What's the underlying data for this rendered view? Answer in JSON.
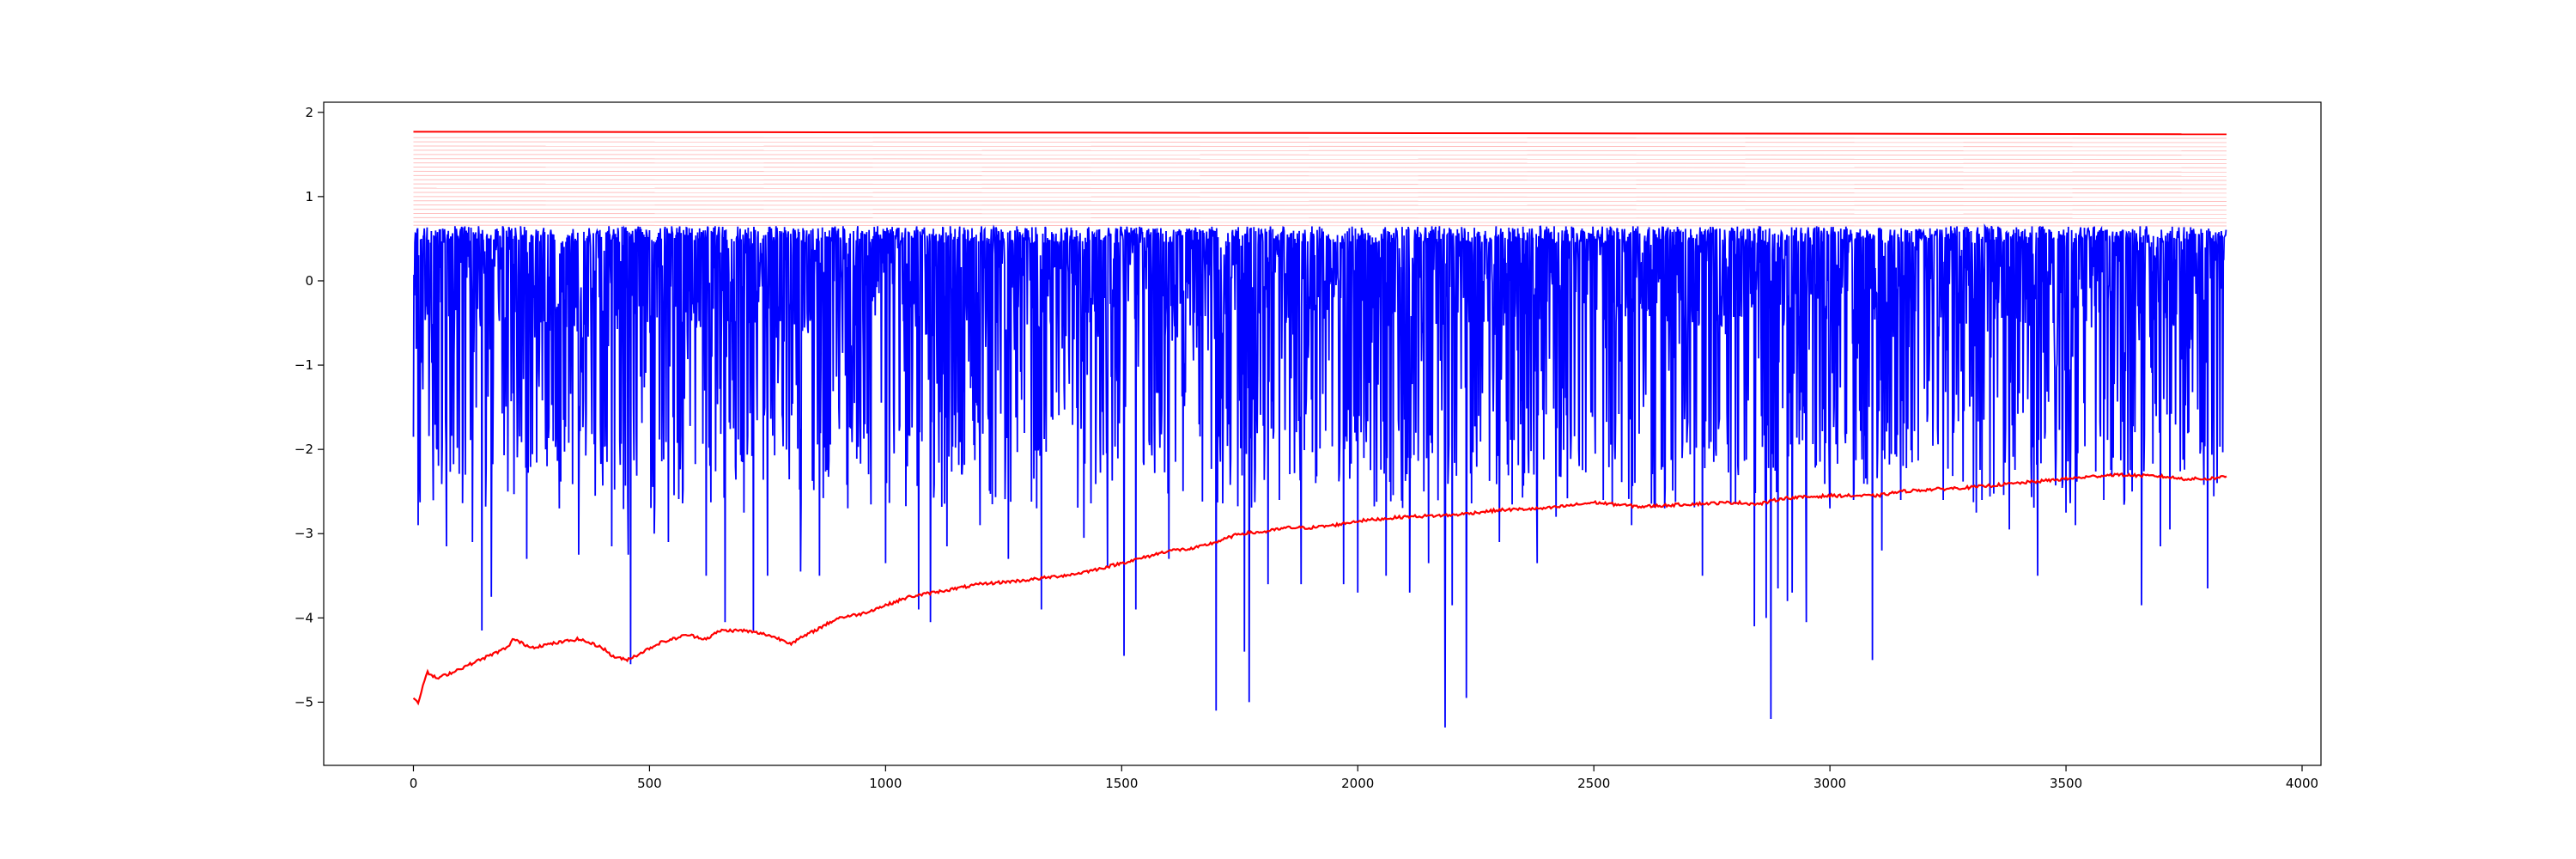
{
  "chart_data": {
    "type": "line",
    "title": "",
    "xlabel": "",
    "ylabel": "",
    "xlim": [
      -190,
      4040
    ],
    "ylim": [
      -5.75,
      2.12
    ],
    "x_ticks": [
      0,
      500,
      1000,
      1500,
      2000,
      2500,
      3000,
      3500,
      4000
    ],
    "x_tick_labels": [
      "0",
      "500",
      "1000",
      "1500",
      "2000",
      "2500",
      "3000",
      "3500",
      "4000"
    ],
    "y_ticks": [
      -5,
      -4,
      -3,
      -2,
      -1,
      0,
      1,
      2
    ],
    "y_tick_labels": [
      "−5",
      "−4",
      "−3",
      "−2",
      "−1",
      "0",
      "1",
      "2"
    ],
    "grid": false,
    "legend": "none",
    "n_points": 3840,
    "colors": {
      "noisy_series": "#0000ff",
      "trend_series": "#ff0000",
      "reference_lines": "#ff0000"
    },
    "series": [
      {
        "style": "noisy",
        "color": "#0000ff",
        "typical_high": 0.65,
        "typical_low": -1.2,
        "spikes": [
          {
            "x": 10,
            "y": -2.9
          },
          {
            "x": 50,
            "y": -2.0
          },
          {
            "x": 70,
            "y": -3.15
          },
          {
            "x": 110,
            "y": -2.3
          },
          {
            "x": 125,
            "y": -3.1
          },
          {
            "x": 145,
            "y": -4.15
          },
          {
            "x": 165,
            "y": -3.75
          },
          {
            "x": 200,
            "y": -2.5
          },
          {
            "x": 240,
            "y": -3.3
          },
          {
            "x": 280,
            "y": -2.0
          },
          {
            "x": 350,
            "y": -3.25
          },
          {
            "x": 420,
            "y": -3.15
          },
          {
            "x": 455,
            "y": -3.25
          },
          {
            "x": 460,
            "y": -4.55
          },
          {
            "x": 510,
            "y": -3.0
          },
          {
            "x": 540,
            "y": -3.1
          },
          {
            "x": 620,
            "y": -3.5
          },
          {
            "x": 660,
            "y": -4.05
          },
          {
            "x": 700,
            "y": -2.75
          },
          {
            "x": 720,
            "y": -4.15
          },
          {
            "x": 750,
            "y": -3.5
          },
          {
            "x": 820,
            "y": -3.45
          },
          {
            "x": 860,
            "y": -3.5
          },
          {
            "x": 920,
            "y": -2.7
          },
          {
            "x": 1000,
            "y": -3.35
          },
          {
            "x": 1070,
            "y": -3.9
          },
          {
            "x": 1095,
            "y": -4.05
          },
          {
            "x": 1130,
            "y": -3.15
          },
          {
            "x": 1200,
            "y": -2.9
          },
          {
            "x": 1260,
            "y": -3.3
          },
          {
            "x": 1330,
            "y": -3.9
          },
          {
            "x": 1420,
            "y": -3.05
          },
          {
            "x": 1470,
            "y": -3.4
          },
          {
            "x": 1505,
            "y": -4.45
          },
          {
            "x": 1530,
            "y": -3.9
          },
          {
            "x": 1600,
            "y": -3.3
          },
          {
            "x": 1700,
            "y": -5.1
          },
          {
            "x": 1760,
            "y": -4.4
          },
          {
            "x": 1770,
            "y": -5.0
          },
          {
            "x": 1810,
            "y": -3.6
          },
          {
            "x": 1880,
            "y": -3.6
          },
          {
            "x": 1970,
            "y": -3.6
          },
          {
            "x": 2000,
            "y": -3.7
          },
          {
            "x": 2060,
            "y": -3.5
          },
          {
            "x": 2110,
            "y": -3.7
          },
          {
            "x": 2150,
            "y": -3.35
          },
          {
            "x": 2185,
            "y": -5.3
          },
          {
            "x": 2200,
            "y": -3.85
          },
          {
            "x": 2230,
            "y": -4.95
          },
          {
            "x": 2300,
            "y": -3.1
          },
          {
            "x": 2380,
            "y": -3.35
          },
          {
            "x": 2420,
            "y": -2.8
          },
          {
            "x": 2520,
            "y": -2.6
          },
          {
            "x": 2580,
            "y": -2.9
          },
          {
            "x": 2650,
            "y": -2.7
          },
          {
            "x": 2730,
            "y": -3.5
          },
          {
            "x": 2800,
            "y": -2.65
          },
          {
            "x": 2840,
            "y": -4.1
          },
          {
            "x": 2865,
            "y": -4.0
          },
          {
            "x": 2875,
            "y": -5.2
          },
          {
            "x": 2890,
            "y": -3.65
          },
          {
            "x": 2910,
            "y": -3.8
          },
          {
            "x": 2920,
            "y": -3.7
          },
          {
            "x": 2950,
            "y": -4.05
          },
          {
            "x": 3000,
            "y": -2.7
          },
          {
            "x": 3050,
            "y": -2.6
          },
          {
            "x": 3090,
            "y": -4.5
          },
          {
            "x": 3110,
            "y": -3.2
          },
          {
            "x": 3150,
            "y": -2.6
          },
          {
            "x": 3240,
            "y": -2.6
          },
          {
            "x": 3310,
            "y": -2.75
          },
          {
            "x": 3380,
            "y": -2.95
          },
          {
            "x": 3440,
            "y": -3.5
          },
          {
            "x": 3500,
            "y": -2.75
          },
          {
            "x": 3520,
            "y": -2.9
          },
          {
            "x": 3580,
            "y": -2.6
          },
          {
            "x": 3640,
            "y": -2.5
          },
          {
            "x": 3660,
            "y": -3.85
          },
          {
            "x": 3700,
            "y": -3.15
          },
          {
            "x": 3720,
            "y": -2.95
          },
          {
            "x": 3800,
            "y": -3.65
          },
          {
            "x": 3820,
            "y": -2.4
          }
        ]
      },
      {
        "style": "trend",
        "color": "#ff0000",
        "points": [
          {
            "x": 0,
            "y": -4.95
          },
          {
            "x": 10,
            "y": -5.0
          },
          {
            "x": 20,
            "y": -4.8
          },
          {
            "x": 30,
            "y": -4.65
          },
          {
            "x": 50,
            "y": -4.72
          },
          {
            "x": 80,
            "y": -4.65
          },
          {
            "x": 120,
            "y": -4.55
          },
          {
            "x": 160,
            "y": -4.45
          },
          {
            "x": 200,
            "y": -4.35
          },
          {
            "x": 210,
            "y": -4.25
          },
          {
            "x": 250,
            "y": -4.35
          },
          {
            "x": 300,
            "y": -4.3
          },
          {
            "x": 350,
            "y": -4.25
          },
          {
            "x": 400,
            "y": -4.35
          },
          {
            "x": 420,
            "y": -4.45
          },
          {
            "x": 450,
            "y": -4.5
          },
          {
            "x": 470,
            "y": -4.45
          },
          {
            "x": 520,
            "y": -4.3
          },
          {
            "x": 580,
            "y": -4.2
          },
          {
            "x": 620,
            "y": -4.25
          },
          {
            "x": 650,
            "y": -4.15
          },
          {
            "x": 700,
            "y": -4.15
          },
          {
            "x": 750,
            "y": -4.2
          },
          {
            "x": 800,
            "y": -4.3
          },
          {
            "x": 850,
            "y": -4.15
          },
          {
            "x": 900,
            "y": -4.0
          },
          {
            "x": 950,
            "y": -3.95
          },
          {
            "x": 1000,
            "y": -3.85
          },
          {
            "x": 1050,
            "y": -3.75
          },
          {
            "x": 1100,
            "y": -3.7
          },
          {
            "x": 1150,
            "y": -3.65
          },
          {
            "x": 1200,
            "y": -3.6
          },
          {
            "x": 1300,
            "y": -3.55
          },
          {
            "x": 1400,
            "y": -3.48
          },
          {
            "x": 1450,
            "y": -3.42
          },
          {
            "x": 1500,
            "y": -3.35
          },
          {
            "x": 1550,
            "y": -3.28
          },
          {
            "x": 1600,
            "y": -3.2
          },
          {
            "x": 1650,
            "y": -3.18
          },
          {
            "x": 1700,
            "y": -3.1
          },
          {
            "x": 1750,
            "y": -3.0
          },
          {
            "x": 1800,
            "y": -2.98
          },
          {
            "x": 1850,
            "y": -2.93
          },
          {
            "x": 1900,
            "y": -2.93
          },
          {
            "x": 1950,
            "y": -2.9
          },
          {
            "x": 2000,
            "y": -2.85
          },
          {
            "x": 2100,
            "y": -2.8
          },
          {
            "x": 2200,
            "y": -2.78
          },
          {
            "x": 2300,
            "y": -2.72
          },
          {
            "x": 2400,
            "y": -2.7
          },
          {
            "x": 2500,
            "y": -2.63
          },
          {
            "x": 2600,
            "y": -2.68
          },
          {
            "x": 2700,
            "y": -2.65
          },
          {
            "x": 2800,
            "y": -2.63
          },
          {
            "x": 2850,
            "y": -2.65
          },
          {
            "x": 2900,
            "y": -2.58
          },
          {
            "x": 3000,
            "y": -2.55
          },
          {
            "x": 3100,
            "y": -2.55
          },
          {
            "x": 3150,
            "y": -2.5
          },
          {
            "x": 3200,
            "y": -2.48
          },
          {
            "x": 3300,
            "y": -2.45
          },
          {
            "x": 3400,
            "y": -2.4
          },
          {
            "x": 3500,
            "y": -2.35
          },
          {
            "x": 3600,
            "y": -2.3
          },
          {
            "x": 3700,
            "y": -2.32
          },
          {
            "x": 3750,
            "y": -2.35
          },
          {
            "x": 3800,
            "y": -2.35
          },
          {
            "x": 3840,
            "y": -2.32
          }
        ]
      }
    ],
    "reference_lines": {
      "solid": {
        "y_start": 1.77,
        "y_end": 1.74
      },
      "faint_levels": [
        1.7,
        1.65,
        1.6,
        1.55,
        1.5,
        1.45,
        1.4,
        1.35,
        1.3,
        1.25,
        1.2,
        1.15,
        1.1,
        1.05,
        1.0,
        0.95,
        0.9,
        0.85,
        0.8,
        0.75,
        0.7,
        0.66
      ],
      "x_start": 0,
      "x_end": 3840
    }
  }
}
